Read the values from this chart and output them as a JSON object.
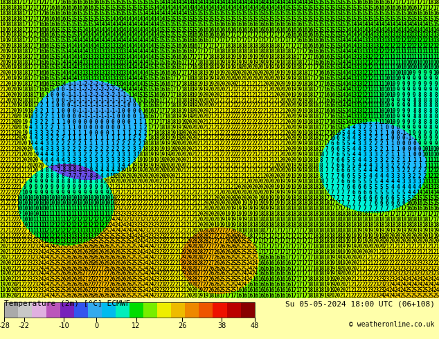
{
  "title_left": "Temperature (2m) [°C] ECMWF",
  "title_right": "Su 05-05-2024 18:00 UTC (06+108)",
  "copyright": "© weatheronline.co.uk",
  "colorbar_values": [
    -28,
    -22,
    -10,
    0,
    12,
    26,
    38,
    48
  ],
  "colorbar_colors": [
    "#b0b0b0",
    "#d0d0d0",
    "#e8c8e8",
    "#cc66cc",
    "#9933cc",
    "#4466ff",
    "#44aaff",
    "#00ccff",
    "#00ffcc",
    "#00ee00",
    "#88ff00",
    "#ffff00",
    "#ffcc00",
    "#ff9900",
    "#ff6600",
    "#ff2200",
    "#cc0000",
    "#990000"
  ],
  "bg_color": "#ffffaa",
  "text_color": "#000000",
  "map_bg": "#ffff88",
  "green_region_color": "#00cc00",
  "orange_region_color": "#ff6600",
  "red_region_color": "#cc0000",
  "number_color_yellow_bg": "#000000",
  "number_color_green_bg": "#000000",
  "figsize": [
    6.34,
    4.9
  ],
  "dpi": 100
}
